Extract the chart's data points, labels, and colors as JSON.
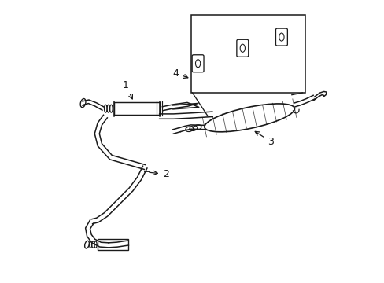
{
  "bg_color": "#ffffff",
  "line_color": "#1a1a1a",
  "lw": 1.1,
  "label_fontsize": 9
}
